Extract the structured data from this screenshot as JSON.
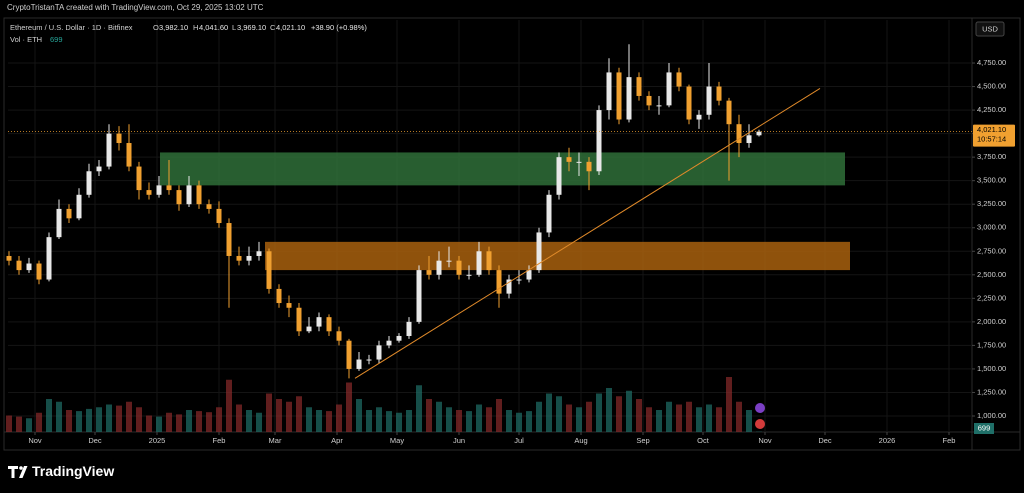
{
  "header": {
    "credit": "CryptoTristanTA created with TradingView.com, Oct 29, 2025 13:02 UTC",
    "symbol": "Ethereum / U.S. Dollar · 1D · Bitfinex",
    "o_label": "O",
    "open": "3,982.10",
    "h_label": "H",
    "high": "4,041.60",
    "l_label": "L",
    "low": "3,969.10",
    "c_label": "C",
    "close": "4,021.10",
    "change": "+38.90 (+0.98%)",
    "vol_label": "Vol · ETH",
    "countdown": "10:57:14",
    "currency": "USD"
  },
  "footer": {
    "brand": "TradingView"
  },
  "chart_data": {
    "type": "candlestick",
    "x": [
      -13,
      -8,
      -3,
      2,
      7,
      12,
      17,
      22,
      27,
      32,
      37,
      42,
      47,
      52,
      57,
      62,
      67,
      72,
      77,
      82,
      87,
      92,
      97,
      102,
      107,
      112,
      117,
      122,
      127,
      132,
      137,
      142,
      147,
      152,
      157,
      162,
      167,
      172,
      177,
      182,
      187,
      192,
      197,
      202,
      207,
      212,
      217,
      222,
      227,
      232,
      237,
      242,
      247,
      252,
      257,
      262,
      267,
      272,
      277,
      282,
      287,
      292,
      297,
      302,
      307,
      312,
      317,
      322,
      327,
      332,
      337,
      342,
      347,
      352,
      357,
      362
    ],
    "open": [
      2700,
      2650,
      2550,
      2620,
      2450,
      2900,
      3200,
      3100,
      3350,
      3600,
      3650,
      4000,
      3900,
      3650,
      3400,
      3350,
      3450,
      3400,
      3250,
      3450,
      3250,
      3200,
      3050,
      2700,
      2650,
      2700,
      2750,
      2350,
      2200,
      2150,
      1900,
      1950,
      2050,
      1900,
      1800,
      1500,
      1600,
      1600,
      1750,
      1800,
      1850,
      2000,
      2550,
      2500,
      2650,
      2650,
      2500,
      2500,
      2750,
      2550,
      2300,
      2450,
      2450,
      2550,
      2950,
      3350,
      3750,
      3700,
      3700,
      3600,
      4250,
      4650,
      4150,
      4600,
      4400,
      4300,
      4300,
      4650,
      4500,
      4150,
      4200,
      4500,
      4350,
      4100,
      3900,
      3982.1
    ],
    "high": [
      2750,
      2700,
      2680,
      2650,
      2950,
      3300,
      3250,
      3420,
      3680,
      3720,
      4100,
      4080,
      4100,
      3700,
      3480,
      3550,
      3720,
      3450,
      3550,
      3500,
      3300,
      3280,
      3100,
      2800,
      2800,
      2850,
      2780,
      2400,
      2280,
      2200,
      2050,
      2100,
      2080,
      1950,
      1820,
      1680,
      1650,
      1800,
      1850,
      1880,
      2050,
      2600,
      2700,
      2750,
      2800,
      2700,
      2600,
      2850,
      2800,
      2600,
      2500,
      2550,
      2600,
      3000,
      3400,
      3800,
      3850,
      3800,
      3750,
      4300,
      4800,
      4700,
      4950,
      4650,
      4450,
      4400,
      4750,
      4700,
      4520,
      4250,
      4750,
      4550,
      4380,
      4200,
      4100,
      4041.6
    ],
    "low": [
      2600,
      2500,
      2520,
      2400,
      2430,
      2880,
      3050,
      3080,
      3320,
      3550,
      3620,
      3820,
      3600,
      3300,
      3300,
      3320,
      3350,
      3180,
      3220,
      3200,
      3150,
      3000,
      2150,
      2600,
      2600,
      2650,
      2300,
      2150,
      2050,
      1850,
      1880,
      1900,
      1850,
      1750,
      1400,
      1480,
      1550,
      1560,
      1720,
      1780,
      1820,
      1980,
      2450,
      2450,
      2580,
      2450,
      2450,
      2480,
      2500,
      2150,
      2250,
      2400,
      2420,
      2520,
      2900,
      3300,
      3600,
      3550,
      3400,
      3560,
      4150,
      4100,
      4120,
      4350,
      4250,
      4200,
      4280,
      4450,
      4100,
      4050,
      4150,
      4300,
      3500,
      3750,
      3850,
      3969.1
    ],
    "close": [
      2650,
      2550,
      2620,
      2450,
      2900,
      3200,
      3100,
      3350,
      3600,
      3650,
      4000,
      3900,
      3650,
      3400,
      3350,
      3450,
      3400,
      3250,
      3450,
      3250,
      3200,
      3050,
      2700,
      2650,
      2700,
      2750,
      2350,
      2200,
      2150,
      1900,
      1950,
      2050,
      1900,
      1800,
      1500,
      1600,
      1600,
      1750,
      1800,
      1850,
      2000,
      2550,
      2500,
      2650,
      2650,
      2500,
      2500,
      2750,
      2550,
      2300,
      2450,
      2450,
      2550,
      2950,
      3350,
      3750,
      3700,
      3700,
      3600,
      4250,
      4650,
      4150,
      4600,
      4400,
      4300,
      4300,
      4650,
      4500,
      4150,
      4200,
      4500,
      4350,
      4100,
      3900,
      3982.1,
      4021.1
    ],
    "volume": [
      30000,
      28000,
      25000,
      35000,
      60000,
      55000,
      40000,
      38000,
      42000,
      45000,
      50000,
      48000,
      55000,
      45000,
      30000,
      28000,
      35000,
      32000,
      40000,
      38000,
      36000,
      45000,
      95000,
      50000,
      40000,
      35000,
      70000,
      60000,
      55000,
      65000,
      45000,
      40000,
      38000,
      50000,
      90000,
      60000,
      40000,
      45000,
      38000,
      35000,
      40000,
      85000,
      60000,
      55000,
      45000,
      40000,
      38000,
      50000,
      45000,
      60000,
      40000,
      35000,
      38000,
      55000,
      70000,
      65000,
      50000,
      45000,
      55000,
      70000,
      80000,
      65000,
      75000,
      60000,
      45000,
      40000,
      55000,
      50000,
      55000,
      45000,
      50000,
      45000,
      100000,
      55000,
      40000,
      699
    ],
    "up_color": "#e8e8e8",
    "down_color": "#f0a030",
    "xlim": [
      -13.5,
      468.5
    ],
    "ylim": [
      830,
      5207
    ],
    "xticks": [
      {
        "value": 0,
        "label": "Nov"
      },
      {
        "value": 30,
        "label": "Dec"
      },
      {
        "value": 61,
        "label": "2025"
      },
      {
        "value": 92,
        "label": "Feb"
      },
      {
        "value": 120,
        "label": "Mar"
      },
      {
        "value": 151,
        "label": "Apr"
      },
      {
        "value": 181,
        "label": "May"
      },
      {
        "value": 212,
        "label": "Jun"
      },
      {
        "value": 242,
        "label": "Jul"
      },
      {
        "value": 273,
        "label": "Aug"
      },
      {
        "value": 304,
        "label": "Sep"
      },
      {
        "value": 334,
        "label": "Oct"
      },
      {
        "value": 365,
        "label": "Nov"
      },
      {
        "value": 395,
        "label": "Dec"
      },
      {
        "value": 426,
        "label": "2026"
      },
      {
        "value": 457,
        "label": "Feb"
      }
    ],
    "yticks": [
      {
        "value": 1000,
        "label": "1,000.00"
      },
      {
        "value": 1250,
        "label": "1,250.00"
      },
      {
        "value": 1500,
        "label": "1,500.00"
      },
      {
        "value": 1750,
        "label": "1,750.00"
      },
      {
        "value": 2000,
        "label": "2,000.00"
      },
      {
        "value": 2250,
        "label": "2,250.00"
      },
      {
        "value": 2500,
        "label": "2,500.00"
      },
      {
        "value": 2750,
        "label": "2,750.00"
      },
      {
        "value": 3000,
        "label": "3,000.00"
      },
      {
        "value": 3250,
        "label": "3,250.00"
      },
      {
        "value": 3500,
        "label": "3,500.00"
      },
      {
        "value": 3750,
        "label": "3,750.00"
      },
      {
        "value": 4000,
        "label": "4,000.00"
      },
      {
        "value": 4250,
        "label": "4,250.00"
      },
      {
        "value": 4500,
        "label": "4,500.00"
      },
      {
        "value": 4750,
        "label": "4,750.00"
      }
    ],
    "grid": true,
    "zones": [
      {
        "x": [
          62.5,
          405
        ],
        "y": [
          3450,
          3800
        ],
        "color": "#2f6e38"
      },
      {
        "x": [
          115,
          407.5
        ],
        "y": [
          2550,
          2850
        ],
        "color": "#a8600e"
      }
    ],
    "trendline": {
      "x": [
        160,
        392.5
      ],
      "y": [
        1400,
        4480
      ],
      "color": "#e08a2a"
    }
  }
}
